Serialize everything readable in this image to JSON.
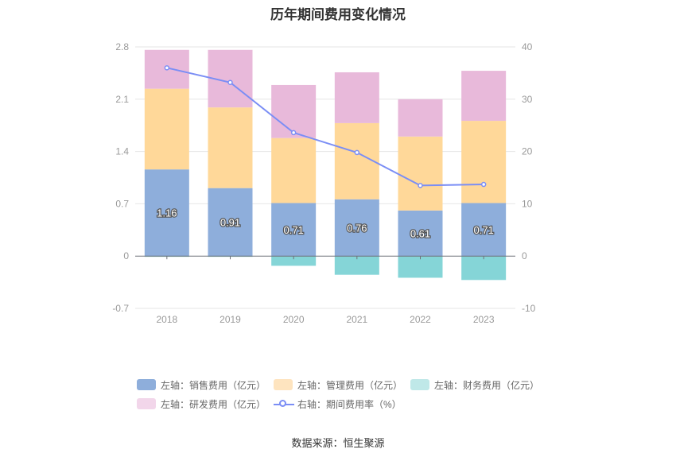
{
  "title": "历年期间费用变化情况",
  "source": "数据来源：恒生聚源",
  "legend": [
    {
      "label": "左轴：销售费用（亿元）",
      "color": "#8eaedb"
    },
    {
      "label": "左轴：管理费用（亿元）",
      "color": "#fee4bf"
    },
    {
      "label": "左轴：财务费用（亿元）",
      "color": "#bfe8e8"
    },
    {
      "label": "左轴：研发费用（亿元）",
      "color": "#f2d6ea"
    },
    {
      "label": "右轴：期间费用率（%）",
      "color": "#7b8ef5"
    }
  ],
  "chart_data": {
    "type": "bar",
    "stacked": true,
    "categories": [
      "2018",
      "2019",
      "2020",
      "2021",
      "2022",
      "2023"
    ],
    "left_axis": {
      "ylim": [
        -0.7,
        2.8
      ],
      "ticks": [
        "-0.7",
        "0",
        "0.7",
        "1.4",
        "2.1",
        "2.8"
      ]
    },
    "right_axis": {
      "ylim": [
        -10,
        40
      ],
      "ticks": [
        "-10",
        "0",
        "10",
        "20",
        "30",
        "40"
      ]
    },
    "series": [
      {
        "name": "左轴：销售费用（亿元）",
        "axis": "left",
        "color": "#8eaedb",
        "values": [
          1.16,
          0.91,
          0.71,
          0.76,
          0.61,
          0.71
        ],
        "labels": [
          "1.16",
          "0.91",
          "0.71",
          "0.76",
          "0.61",
          "0.71"
        ]
      },
      {
        "name": "左轴：管理费用（亿元）",
        "axis": "left",
        "color": "#ffd899",
        "values": [
          1.08,
          1.08,
          0.87,
          1.02,
          0.99,
          1.1
        ]
      },
      {
        "name": "左轴：财务费用（亿元）",
        "axis": "left",
        "color": "#85d5d7",
        "values": [
          -0.01,
          -0.01,
          -0.13,
          -0.25,
          -0.29,
          -0.32
        ]
      },
      {
        "name": "左轴：研发费用（亿元）",
        "axis": "left",
        "color": "#e8b9da",
        "values": [
          0.52,
          0.77,
          0.71,
          0.68,
          0.5,
          0.67
        ]
      },
      {
        "name": "右轴：期间费用率（%）",
        "axis": "right",
        "type": "line",
        "color": "#7b8ef5",
        "values": [
          36,
          33.2,
          23.6,
          19.8,
          13.5,
          13.7
        ]
      }
    ],
    "grid": true
  }
}
